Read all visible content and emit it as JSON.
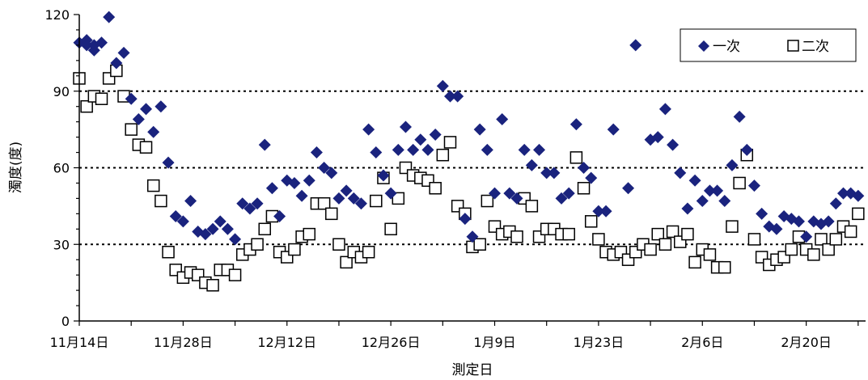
{
  "chart_data": {
    "type": "scatter",
    "xlabel": "測定日",
    "ylabel": "濁度(度)",
    "ylim": [
      0,
      120
    ],
    "yticks": [
      "0",
      "30",
      "60",
      "90",
      "120"
    ],
    "xlim": [
      "2023-11-14",
      "2024-02-28"
    ],
    "xticks": [
      {
        "date": "2023-11-14",
        "label": "11月14日"
      },
      {
        "date": "2023-11-28",
        "label": "11月28日"
      },
      {
        "date": "2023-12-12",
        "label": "12月12日"
      },
      {
        "date": "2023-12-26",
        "label": "12月26日"
      },
      {
        "date": "2024-01-09",
        "label": "1月9日"
      },
      {
        "date": "2024-01-23",
        "label": "1月23日"
      },
      {
        "date": "2024-02-06",
        "label": "2月6日"
      },
      {
        "date": "2024-02-20",
        "label": "2月20日"
      }
    ],
    "gridlines": [
      30,
      60,
      90
    ],
    "legend_position": "top-right",
    "series": [
      {
        "name": "一次",
        "marker": "diamond",
        "color": "#1a237e",
        "points": [
          [
            "2023-11-14",
            109
          ],
          [
            "2023-11-15",
            110
          ],
          [
            "2023-11-15",
            108
          ],
          [
            "2023-11-16",
            106
          ],
          [
            "2023-11-16",
            108
          ],
          [
            "2023-11-17",
            109
          ],
          [
            "2023-11-18",
            119
          ],
          [
            "2023-11-19",
            101
          ],
          [
            "2023-11-20",
            105
          ],
          [
            "2023-11-21",
            87
          ],
          [
            "2023-11-22",
            79
          ],
          [
            "2023-11-23",
            83
          ],
          [
            "2023-11-24",
            74
          ],
          [
            "2023-11-25",
            84
          ],
          [
            "2023-11-26",
            62
          ],
          [
            "2023-11-27",
            41
          ],
          [
            "2023-11-28",
            39
          ],
          [
            "2023-11-29",
            47
          ],
          [
            "2023-11-30",
            35
          ],
          [
            "2023-12-01",
            34
          ],
          [
            "2023-12-02",
            36
          ],
          [
            "2023-12-03",
            39
          ],
          [
            "2023-12-04",
            36
          ],
          [
            "2023-12-05",
            32
          ],
          [
            "2023-12-06",
            46
          ],
          [
            "2023-12-07",
            44
          ],
          [
            "2023-12-08",
            46
          ],
          [
            "2023-12-09",
            69
          ],
          [
            "2023-12-10",
            52
          ],
          [
            "2023-12-11",
            41
          ],
          [
            "2023-12-12",
            55
          ],
          [
            "2023-12-13",
            54
          ],
          [
            "2023-12-14",
            49
          ],
          [
            "2023-12-15",
            55
          ],
          [
            "2023-12-16",
            66
          ],
          [
            "2023-12-17",
            60
          ],
          [
            "2023-12-18",
            58
          ],
          [
            "2023-12-19",
            48
          ],
          [
            "2023-12-20",
            51
          ],
          [
            "2023-12-21",
            48
          ],
          [
            "2023-12-22",
            46
          ],
          [
            "2023-12-23",
            75
          ],
          [
            "2023-12-24",
            66
          ],
          [
            "2023-12-25",
            57
          ],
          [
            "2023-12-26",
            50
          ],
          [
            "2023-12-27",
            67
          ],
          [
            "2023-12-28",
            76
          ],
          [
            "2023-12-29",
            67
          ],
          [
            "2023-12-30",
            71
          ],
          [
            "2023-12-31",
            67
          ],
          [
            "2024-01-01",
            73
          ],
          [
            "2024-01-02",
            92
          ],
          [
            "2024-01-03",
            88
          ],
          [
            "2024-01-04",
            88
          ],
          [
            "2024-01-05",
            40
          ],
          [
            "2024-01-06",
            33
          ],
          [
            "2024-01-07",
            75
          ],
          [
            "2024-01-08",
            67
          ],
          [
            "2024-01-09",
            50
          ],
          [
            "2024-01-10",
            79
          ],
          [
            "2024-01-11",
            50
          ],
          [
            "2024-01-12",
            48
          ],
          [
            "2024-01-13",
            67
          ],
          [
            "2024-01-14",
            61
          ],
          [
            "2024-01-15",
            67
          ],
          [
            "2024-01-16",
            58
          ],
          [
            "2024-01-17",
            58
          ],
          [
            "2024-01-18",
            48
          ],
          [
            "2024-01-19",
            50
          ],
          [
            "2024-01-20",
            77
          ],
          [
            "2024-01-21",
            60
          ],
          [
            "2024-01-22",
            56
          ],
          [
            "2024-01-23",
            43
          ],
          [
            "2024-01-24",
            43
          ],
          [
            "2024-01-25",
            75
          ],
          [
            "2024-01-27",
            52
          ],
          [
            "2024-01-28",
            108
          ],
          [
            "2024-01-30",
            71
          ],
          [
            "2024-01-31",
            72
          ],
          [
            "2024-02-01",
            83
          ],
          [
            "2024-02-02",
            69
          ],
          [
            "2024-02-03",
            58
          ],
          [
            "2024-02-04",
            44
          ],
          [
            "2024-02-05",
            55
          ],
          [
            "2024-02-06",
            47
          ],
          [
            "2024-02-07",
            51
          ],
          [
            "2024-02-08",
            51
          ],
          [
            "2024-02-09",
            47
          ],
          [
            "2024-02-10",
            61
          ],
          [
            "2024-02-11",
            80
          ],
          [
            "2024-02-12",
            67
          ],
          [
            "2024-02-13",
            53
          ],
          [
            "2024-02-14",
            42
          ],
          [
            "2024-02-15",
            37
          ],
          [
            "2024-02-16",
            36
          ],
          [
            "2024-02-17",
            41
          ],
          [
            "2024-02-18",
            40
          ],
          [
            "2024-02-19",
            39
          ],
          [
            "2024-02-20",
            33
          ],
          [
            "2024-02-21",
            39
          ],
          [
            "2024-02-22",
            38
          ],
          [
            "2024-02-23",
            39
          ],
          [
            "2024-02-24",
            46
          ],
          [
            "2024-02-25",
            50
          ],
          [
            "2024-02-26",
            50
          ],
          [
            "2024-02-27",
            49
          ]
        ]
      },
      {
        "name": "二次",
        "marker": "square-open",
        "color": "#000000",
        "points": [
          [
            "2023-11-14",
            95
          ],
          [
            "2023-11-15",
            84
          ],
          [
            "2023-11-16",
            88
          ],
          [
            "2023-11-17",
            87
          ],
          [
            "2023-11-18",
            95
          ],
          [
            "2023-11-19",
            98
          ],
          [
            "2023-11-20",
            88
          ],
          [
            "2023-11-21",
            75
          ],
          [
            "2023-11-22",
            69
          ],
          [
            "2023-11-23",
            68
          ],
          [
            "2023-11-24",
            53
          ],
          [
            "2023-11-25",
            47
          ],
          [
            "2023-11-26",
            27
          ],
          [
            "2023-11-27",
            20
          ],
          [
            "2023-11-28",
            17
          ],
          [
            "2023-11-29",
            19
          ],
          [
            "2023-11-30",
            18
          ],
          [
            "2023-12-01",
            15
          ],
          [
            "2023-12-02",
            14
          ],
          [
            "2023-12-03",
            20
          ],
          [
            "2023-12-04",
            20
          ],
          [
            "2023-12-05",
            18
          ],
          [
            "2023-12-06",
            26
          ],
          [
            "2023-12-07",
            28
          ],
          [
            "2023-12-08",
            30
          ],
          [
            "2023-12-09",
            36
          ],
          [
            "2023-12-10",
            41
          ],
          [
            "2023-12-11",
            27
          ],
          [
            "2023-12-12",
            25
          ],
          [
            "2023-12-13",
            28
          ],
          [
            "2023-12-14",
            33
          ],
          [
            "2023-12-15",
            34
          ],
          [
            "2023-12-16",
            46
          ],
          [
            "2023-12-17",
            46
          ],
          [
            "2023-12-18",
            42
          ],
          [
            "2023-12-19",
            30
          ],
          [
            "2023-12-20",
            23
          ],
          [
            "2023-12-21",
            27
          ],
          [
            "2023-12-22",
            25
          ],
          [
            "2023-12-23",
            27
          ],
          [
            "2023-12-24",
            47
          ],
          [
            "2023-12-25",
            56
          ],
          [
            "2023-12-26",
            36
          ],
          [
            "2023-12-27",
            48
          ],
          [
            "2023-12-28",
            60
          ],
          [
            "2023-12-29",
            57
          ],
          [
            "2023-12-30",
            56
          ],
          [
            "2023-12-31",
            55
          ],
          [
            "2024-01-01",
            52
          ],
          [
            "2024-01-02",
            65
          ],
          [
            "2024-01-03",
            70
          ],
          [
            "2024-01-04",
            45
          ],
          [
            "2024-01-05",
            42
          ],
          [
            "2024-01-06",
            29
          ],
          [
            "2024-01-07",
            30
          ],
          [
            "2024-01-08",
            47
          ],
          [
            "2024-01-09",
            37
          ],
          [
            "2024-01-10",
            34
          ],
          [
            "2024-01-11",
            35
          ],
          [
            "2024-01-12",
            33
          ],
          [
            "2024-01-13",
            48
          ],
          [
            "2024-01-14",
            45
          ],
          [
            "2024-01-15",
            33
          ],
          [
            "2024-01-16",
            36
          ],
          [
            "2024-01-17",
            36
          ],
          [
            "2024-01-18",
            34
          ],
          [
            "2024-01-19",
            34
          ],
          [
            "2024-01-20",
            64
          ],
          [
            "2024-01-21",
            52
          ],
          [
            "2024-01-22",
            39
          ],
          [
            "2024-01-23",
            32
          ],
          [
            "2024-01-24",
            27
          ],
          [
            "2024-01-25",
            26
          ],
          [
            "2024-01-26",
            27
          ],
          [
            "2024-01-27",
            24
          ],
          [
            "2024-01-28",
            27
          ],
          [
            "2024-01-29",
            30
          ],
          [
            "2024-01-30",
            28
          ],
          [
            "2024-01-31",
            34
          ],
          [
            "2024-02-01",
            30
          ],
          [
            "2024-02-02",
            35
          ],
          [
            "2024-02-03",
            31
          ],
          [
            "2024-02-04",
            34
          ],
          [
            "2024-02-05",
            23
          ],
          [
            "2024-02-06",
            28
          ],
          [
            "2024-02-07",
            26
          ],
          [
            "2024-02-08",
            21
          ],
          [
            "2024-02-09",
            21
          ],
          [
            "2024-02-10",
            37
          ],
          [
            "2024-02-11",
            54
          ],
          [
            "2024-02-12",
            65
          ],
          [
            "2024-02-13",
            32
          ],
          [
            "2024-02-14",
            25
          ],
          [
            "2024-02-15",
            22
          ],
          [
            "2024-02-16",
            24
          ],
          [
            "2024-02-17",
            25
          ],
          [
            "2024-02-18",
            28
          ],
          [
            "2024-02-19",
            33
          ],
          [
            "2024-02-20",
            28
          ],
          [
            "2024-02-21",
            26
          ],
          [
            "2024-02-22",
            32
          ],
          [
            "2024-02-23",
            28
          ],
          [
            "2024-02-24",
            32
          ],
          [
            "2024-02-25",
            37
          ],
          [
            "2024-02-26",
            35
          ],
          [
            "2024-02-27",
            42
          ]
        ]
      }
    ]
  }
}
